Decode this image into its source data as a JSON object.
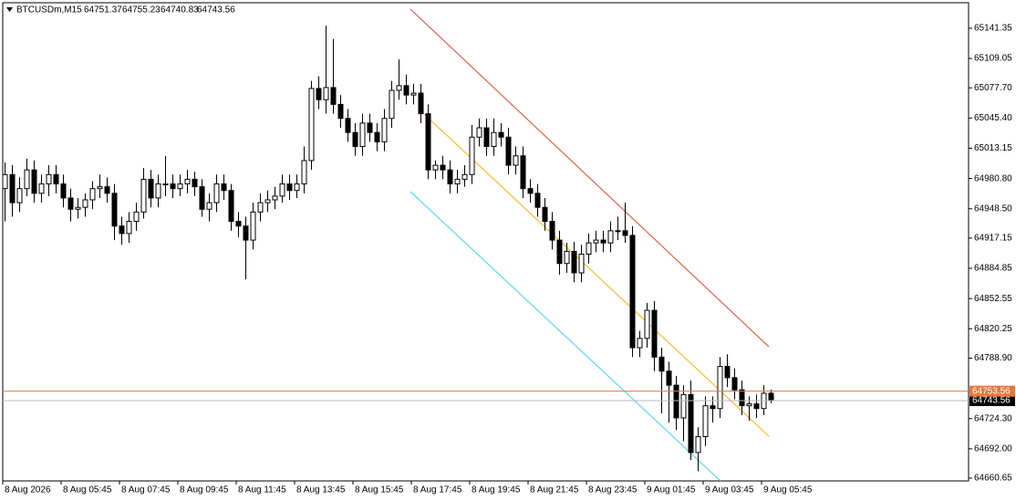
{
  "chart_data": {
    "type": "candlestick",
    "symbol": "BTCUSDm,M15",
    "categories": [
      "8 Aug 2026",
      null,
      null,
      null,
      null,
      null,
      null,
      null,
      "8 Aug 05:45",
      null,
      null,
      null,
      null,
      null,
      null,
      null,
      "8 Aug 07:45",
      null,
      null,
      null,
      null,
      null,
      null,
      null,
      "8 Aug 09:45",
      null,
      null,
      null,
      null,
      null,
      null,
      null,
      "8 Aug 11:45",
      null,
      null,
      null,
      null,
      null,
      null,
      null,
      "8 Aug 13:45",
      null,
      null,
      null,
      null,
      null,
      null,
      null,
      "8 Aug 15:45",
      null,
      null,
      null,
      null,
      null,
      null,
      null,
      "8 Aug 17:45",
      null,
      null,
      null,
      null,
      null,
      null,
      null,
      "8 Aug 19:45",
      null,
      null,
      null,
      null,
      null,
      null,
      null,
      "8 Aug 21:45",
      null,
      null,
      null,
      null,
      null,
      null,
      null,
      "8 Aug 23:45",
      null,
      null,
      null,
      null,
      null,
      null,
      null,
      "9 Aug 01:45",
      null,
      null,
      null,
      null,
      null,
      null,
      null,
      "9 Aug 03:45",
      null,
      null,
      null,
      null,
      null,
      null,
      null,
      "9 Aug 05:45",
      null
    ],
    "open": [
      64970,
      64985,
      64955,
      64970,
      64990,
      64965,
      64975,
      64985,
      64975,
      64960,
      64948,
      64950,
      64958,
      64970,
      64972,
      64965,
      64930,
      64922,
      64935,
      64945,
      64980,
      64960,
      64975,
      64975,
      64970,
      64975,
      64980,
      64972,
      64948,
      64955,
      64975,
      64968,
      64935,
      64930,
      64915,
      64945,
      64955,
      64958,
      64962,
      64975,
      64968,
      64975,
      65000,
      65077,
      65065,
      65078,
      65060,
      65045,
      65030,
      65015,
      65040,
      65030,
      65020,
      65045,
      65075,
      65080,
      65070,
      65072,
      65050,
      64990,
      64995,
      64990,
      64975,
      64980,
      64985,
      65025,
      65035,
      65015,
      65030,
      65025,
      64995,
      65005,
      64970,
      64965,
      64950,
      64935,
      64915,
      64890,
      64903,
      64880,
      64900,
      64912,
      64915,
      64912,
      64925,
      64925,
      64920,
      64800,
      64810,
      64840,
      64790,
      64775,
      64760,
      64725,
      64750,
      64688,
      64705,
      64738,
      64735,
      64780,
      64768,
      64755,
      64738,
      64740,
      64735,
      64751.37
    ],
    "high": [
      64998,
      64995,
      64982,
      65002,
      65000,
      64985,
      64995,
      64995,
      64985,
      64970,
      64960,
      64965,
      64978,
      64985,
      64982,
      64975,
      64940,
      64945,
      64955,
      64992,
      64990,
      64985,
      65005,
      64985,
      64985,
      64990,
      64988,
      64980,
      64965,
      64985,
      64985,
      64975,
      64945,
      64940,
      64955,
      64965,
      64968,
      64972,
      64985,
      64985,
      64985,
      65015,
      65085,
      65090,
      65144,
      65130,
      65070,
      65055,
      65040,
      65050,
      65050,
      65040,
      65055,
      65085,
      65108,
      65092,
      65082,
      65082,
      65060,
      65000,
      65005,
      65000,
      64990,
      64995,
      65038,
      65045,
      65045,
      65045,
      65040,
      65035,
      65015,
      65015,
      64980,
      64975,
      64960,
      64945,
      64925,
      64912,
      64913,
      64910,
      64922,
      64925,
      64925,
      64935,
      64940,
      64955,
      64930,
      64818,
      64848,
      64850,
      64800,
      64785,
      64770,
      64760,
      64765,
      64715,
      64748,
      64748,
      64790,
      64793,
      64778,
      64765,
      64748,
      64750,
      64760,
      64755.23
    ],
    "low": [
      64935,
      64940,
      64945,
      64962,
      64955,
      64955,
      64962,
      64965,
      64950,
      64935,
      64938,
      64940,
      64948,
      64960,
      64955,
      64915,
      64910,
      64912,
      64925,
      64938,
      64950,
      64950,
      64962,
      64960,
      64962,
      64965,
      64962,
      64940,
      64935,
      64945,
      64958,
      64925,
      64918,
      64873,
      64905,
      64935,
      64945,
      64948,
      64955,
      64958,
      64960,
      64965,
      64990,
      65055,
      65050,
      65050,
      65035,
      65020,
      65005,
      65005,
      65020,
      65010,
      65010,
      65035,
      65065,
      65060,
      65060,
      65040,
      64980,
      64980,
      64980,
      64965,
      64965,
      64972,
      64975,
      65015,
      65005,
      65005,
      65015,
      64985,
      64985,
      64960,
      64955,
      64940,
      64925,
      64905,
      64878,
      64880,
      64870,
      64870,
      64890,
      64902,
      64902,
      64902,
      64915,
      64912,
      64790,
      64790,
      64800,
      64775,
      64730,
      64720,
      64712,
      64700,
      64680,
      64668,
      64695,
      64720,
      64725,
      64758,
      64745,
      64728,
      64722,
      64725,
      64728,
      64740.83
    ],
    "close": [
      64985,
      64955,
      64970,
      64990,
      64965,
      64975,
      64985,
      64975,
      64960,
      64948,
      64950,
      64958,
      64970,
      64972,
      64965,
      64930,
      64922,
      64935,
      64945,
      64980,
      64960,
      64975,
      64975,
      64970,
      64975,
      64980,
      64972,
      64948,
      64955,
      64975,
      64968,
      64935,
      64930,
      64915,
      64945,
      64955,
      64958,
      64962,
      64975,
      64968,
      64975,
      65000,
      65077,
      65065,
      65078,
      65060,
      65045,
      65030,
      65015,
      65040,
      65030,
      65020,
      65045,
      65075,
      65080,
      65070,
      65072,
      65050,
      64990,
      64995,
      64990,
      64975,
      64980,
      64985,
      65025,
      65035,
      65015,
      65030,
      65025,
      64995,
      65005,
      64970,
      64965,
      64950,
      64935,
      64915,
      64890,
      64903,
      64880,
      64900,
      64912,
      64915,
      64912,
      64925,
      64925,
      64920,
      64800,
      64810,
      64840,
      64790,
      64775,
      64760,
      64725,
      64750,
      64688,
      64705,
      64738,
      64735,
      64780,
      64768,
      64755,
      64738,
      64740,
      64735,
      64751.37,
      64743.56
    ],
    "ylim": [
      64657.7,
      65168.6
    ],
    "yticks": [
      65141.35,
      65109.05,
      {
        "value": 65077.7,
        "label": "65077.70"
      },
      {
        "value": 65045.4,
        "label": "65045.40"
      },
      65013.15,
      {
        "value": 64980.8,
        "label": "64980.80"
      },
      {
        "value": 64948.5,
        "label": "64948.50"
      },
      64917.15,
      64884.85,
      64852.55,
      64820.25,
      {
        "value": 64788.9,
        "label": "64788.90"
      },
      {
        "value": 64724.3,
        "label": "64724.30"
      },
      {
        "value": 64692,
        "label": "64692.00"
      },
      64660.65
    ],
    "ask": 64753.56,
    "ask_color": "#e8773a",
    "bid": 64743.56,
    "bid_color": "#b8b8b8"
  }
}
